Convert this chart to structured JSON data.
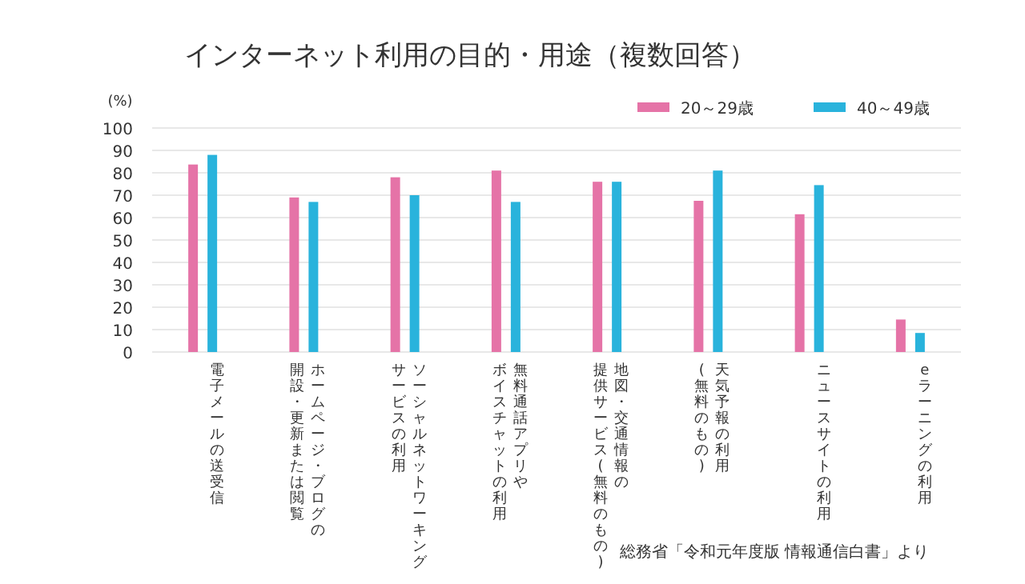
{
  "chart_data": {
    "type": "bar",
    "title": "インターネット利用の目的・用途（複数回答）",
    "ylabel": "(%)",
    "categories": [
      "電子メールの送受信",
      "ホームページ・ブログの開設・更新または閲覧",
      "ソーシャルネットワーキングサービスの利用",
      "無料通話アプリやボイスチャットの利用",
      "地図・交通情報の提供サービス(無料のもの)",
      "天気予報の利用(無料のもの)",
      "ニュースサイトの利用",
      "eラーニングの利用"
    ],
    "series": [
      {
        "name": "20～29歳",
        "color": "#e573a7",
        "values": [
          83.7,
          69,
          78,
          81,
          76,
          67.5,
          61.5,
          14.5
        ]
      },
      {
        "name": "40～49歳",
        "color": "#29b3dc",
        "values": [
          88,
          67,
          70,
          67,
          76,
          81,
          74.5,
          8.5
        ]
      }
    ],
    "ylim": [
      0,
      100
    ],
    "yticks": [
      0,
      10,
      20,
      30,
      40,
      50,
      60,
      70,
      80,
      90,
      100
    ],
    "grid": "y",
    "legend": "top right",
    "annotations": [
      "総務省「令和元年度版 情報通信白書」より"
    ]
  }
}
